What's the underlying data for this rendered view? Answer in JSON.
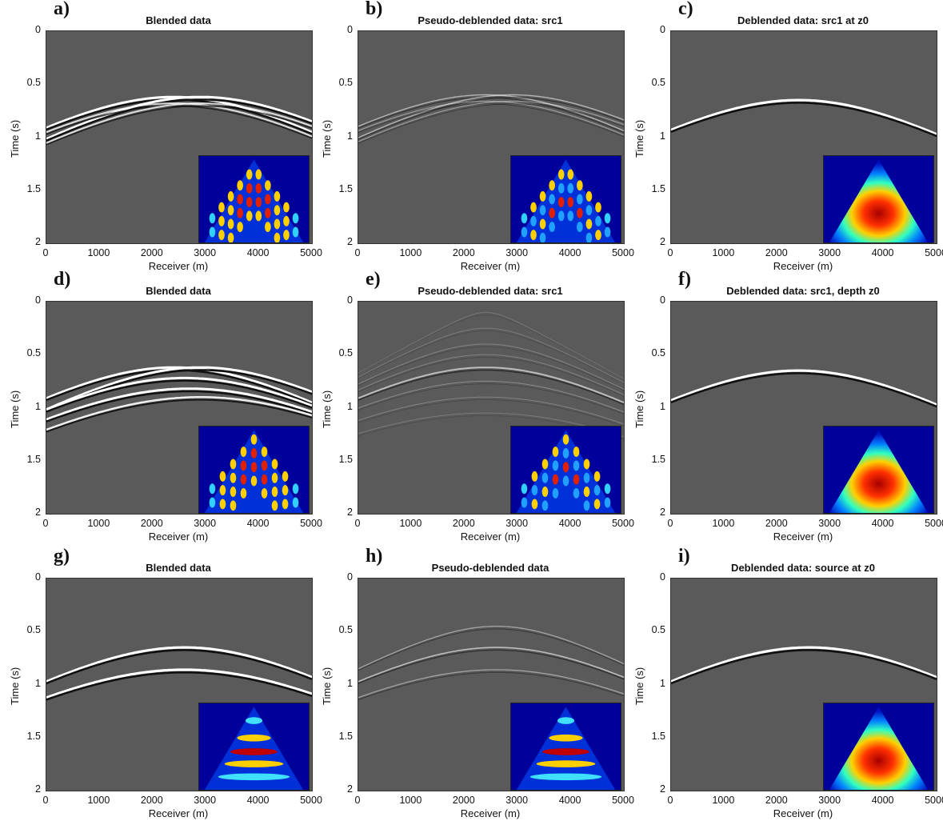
{
  "figure": {
    "panels": [
      {
        "letter": "a)",
        "title": "Blended data",
        "row": 0,
        "col": 0,
        "wave": "blended2",
        "inset": "blended2"
      },
      {
        "letter": "b)",
        "title": "Pseudo-deblended data: src1",
        "row": 0,
        "col": 1,
        "wave": "pseudo2",
        "inset": "pseudo2"
      },
      {
        "letter": "c)",
        "title": "Deblended data: src1 at z0",
        "row": 0,
        "col": 2,
        "wave": "clean",
        "inset": "clean"
      },
      {
        "letter": "d)",
        "title": "Blended data",
        "row": 1,
        "col": 0,
        "wave": "blended3",
        "inset": "blended3"
      },
      {
        "letter": "e)",
        "title": "Pseudo-deblended data: src1",
        "row": 1,
        "col": 1,
        "wave": "pseudo3",
        "inset": "pseudo3"
      },
      {
        "letter": "f)",
        "title": "Deblended data: src1, depth z0",
        "row": 1,
        "col": 2,
        "wave": "clean",
        "inset": "clean"
      },
      {
        "letter": "g)",
        "title": "Blended data",
        "row": 2,
        "col": 0,
        "wave": "blendedSeq",
        "inset": "blendedSeq"
      },
      {
        "letter": "h)",
        "title": "Pseudo-deblended data",
        "row": 2,
        "col": 1,
        "wave": "pseudoSeq",
        "inset": "pseudoSeq"
      },
      {
        "letter": "i)",
        "title": "Deblended data: source at z0",
        "row": 2,
        "col": 2,
        "wave": "cleanSeq",
        "inset": "cleanSeq"
      }
    ],
    "xlabel": "Receiver (m)",
    "ylabel": "Time (s)",
    "xticks": [
      "0",
      "1000",
      "2000",
      "3000",
      "4000",
      "5000"
    ],
    "yticks": [
      "0",
      "0.5",
      "1",
      "1.5",
      "2"
    ],
    "colors": {
      "background": "#5a5a5a",
      "wave_light": "#ffffff",
      "wave_dark": "#111111",
      "inset_base": "#00009a"
    }
  },
  "chart_data": {
    "type": "heatmap",
    "description_units": {
      "x": "Receiver (m)",
      "y": "Time (s)"
    },
    "xlim": [
      0,
      5000
    ],
    "ylim": [
      2,
      0
    ],
    "grid": false,
    "panels": [
      {
        "id": "a",
        "title": "Blended data",
        "events": [
          {
            "apex_x": 2400,
            "apex_t": 0.62
          },
          {
            "apex_x": 2900,
            "apex_t": 0.62
          }
        ]
      },
      {
        "id": "b",
        "title": "Pseudo-deblended data: src1",
        "events": [
          {
            "apex_x": 2400,
            "apex_t": 0.62
          },
          {
            "apex_x": 2900,
            "apex_t": 0.62
          }
        ]
      },
      {
        "id": "c",
        "title": "Deblended data: src1 at z0",
        "events": [
          {
            "apex_x": 2400,
            "apex_t": 0.65
          }
        ]
      },
      {
        "id": "d",
        "title": "Blended data",
        "events": [
          {
            "apex_x": 2400,
            "apex_t": 0.62
          },
          {
            "apex_x": 2900,
            "apex_t": 0.62
          },
          {
            "apex_x": 2700,
            "apex_t": 0.8
          }
        ]
      },
      {
        "id": "e",
        "title": "Pseudo-deblended data: src1",
        "events": [
          {
            "apex_x": 2400,
            "apex_t": 0.62
          }
        ]
      },
      {
        "id": "f",
        "title": "Deblended data: src1, depth z0",
        "events": [
          {
            "apex_x": 2400,
            "apex_t": 0.65
          }
        ]
      },
      {
        "id": "g",
        "title": "Blended data",
        "events": [
          {
            "apex_x": 2600,
            "apex_t": 0.65
          },
          {
            "apex_x": 2600,
            "apex_t": 0.85
          }
        ]
      },
      {
        "id": "h",
        "title": "Pseudo-deblended data",
        "events": [
          {
            "apex_x": 2600,
            "apex_t": 0.45
          },
          {
            "apex_x": 2600,
            "apex_t": 0.65
          },
          {
            "apex_x": 2600,
            "apex_t": 0.85
          }
        ]
      },
      {
        "id": "i",
        "title": "Deblended data: source at z0",
        "events": [
          {
            "apex_x": 2600,
            "apex_t": 0.65
          }
        ]
      }
    ]
  }
}
